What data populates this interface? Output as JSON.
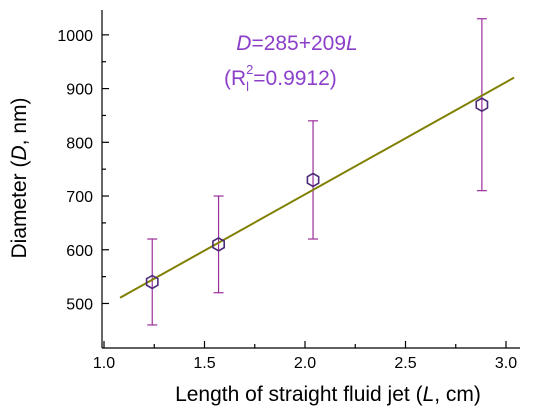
{
  "chart_data": {
    "type": "scatter",
    "xlabel_prefix": "Length of straight fluid jet (",
    "xlabel_var": "L",
    "xlabel_suffix": ", cm)",
    "ylabel_prefix": "Diameter (",
    "ylabel_var": "D",
    "ylabel_suffix": ", nm)",
    "xlim": [
      1.0,
      3.0
    ],
    "ylim": [
      400,
      1050
    ],
    "x_ticks": [
      1.0,
      1.5,
      2.0,
      2.5,
      3.0
    ],
    "x_tick_labels": [
      "1.0",
      "1.5",
      "2.0",
      "2.5",
      "3.0"
    ],
    "y_ticks": [
      500,
      600,
      700,
      800,
      900,
      1000
    ],
    "y_tick_labels": [
      "500",
      "600",
      "700",
      "800",
      "900",
      "1000"
    ],
    "grid": false,
    "points": [
      {
        "x": 1.24,
        "y": 540,
        "err_low": 460,
        "err_high": 620
      },
      {
        "x": 1.57,
        "y": 610,
        "err_low": 520,
        "err_high": 700
      },
      {
        "x": 2.04,
        "y": 730,
        "err_low": 620,
        "err_high": 840
      },
      {
        "x": 2.88,
        "y": 870,
        "err_low": 710,
        "err_high": 1030
      }
    ],
    "fit": {
      "intercept": 285,
      "slope": 209,
      "x_range": [
        1.08,
        3.04
      ]
    },
    "annotation": {
      "equation_var_d": "D",
      "equation_mid": "=285+209",
      "equation_var_l": "L",
      "r2_open": "(R",
      "r2_sub": "l",
      "r2_sup": "2",
      "r2_value": "=0.9912)"
    },
    "colors": {
      "fit_line": "#808000",
      "error_bars": "#9b2f9b",
      "markers": "#4b2a7a",
      "annotation_text": "#8c3fc9",
      "axes": "#000000"
    }
  }
}
